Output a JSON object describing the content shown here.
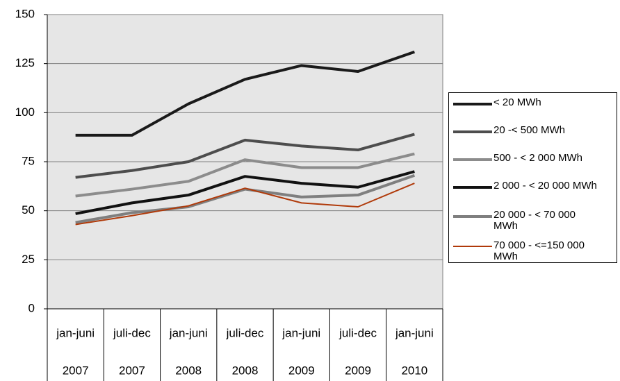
{
  "chart_data": {
    "type": "line",
    "categories": [
      [
        "jan-juni",
        "2007"
      ],
      [
        "juli-dec",
        "2007"
      ],
      [
        "jan-juni",
        "2008"
      ],
      [
        "juli-dec",
        "2008"
      ],
      [
        "jan-juni",
        "2009"
      ],
      [
        "juli-dec",
        "2009"
      ],
      [
        "jan-juni",
        "2010"
      ]
    ],
    "series": [
      {
        "name": "< 20 MWh",
        "color": "#1a1a1a",
        "values": [
          88.5,
          88.5,
          104.5,
          117,
          124,
          121,
          131
        ]
      },
      {
        "name": "20 -< 500 MWh",
        "color": "#4d4d4d",
        "values": [
          67,
          70.5,
          75,
          86,
          83,
          81,
          89
        ]
      },
      {
        "name": "500 - < 2 000 MWh",
        "color": "#8c8c8c",
        "values": [
          57.5,
          61,
          65,
          76,
          72,
          72,
          79
        ]
      },
      {
        "name": "2 000 - < 20 000 MWh",
        "color": "#111111",
        "values": [
          48.5,
          54,
          58,
          67.5,
          64,
          62,
          70
        ]
      },
      {
        "name": "20 000 - < 70 000 MWh",
        "color": "#7f7f7f",
        "values": [
          44,
          49,
          52,
          61,
          57,
          58,
          68
        ]
      },
      {
        "name": "70 000 - <=150 000 MWh",
        "color": "#b03a0a",
        "values": [
          43,
          47.5,
          52.5,
          61.5,
          54,
          52,
          64
        ]
      }
    ],
    "ylim": [
      0,
      150
    ],
    "yticks": [
      0,
      25,
      50,
      75,
      100,
      125,
      150
    ],
    "grid": true,
    "legend": "right"
  }
}
